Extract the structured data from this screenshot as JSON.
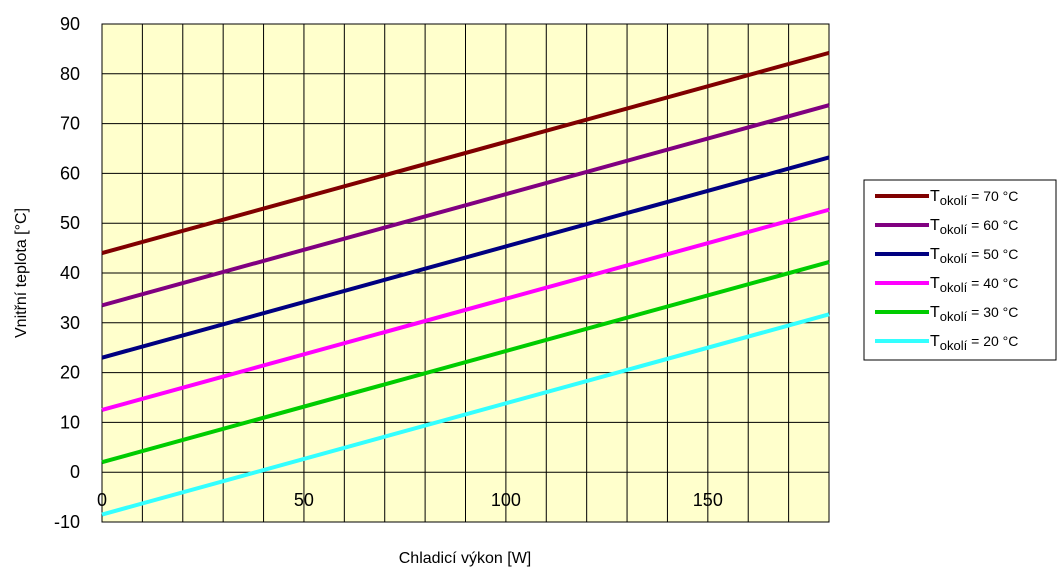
{
  "chart_data": {
    "type": "line",
    "xlabel": "Chladicí výkon [W]",
    "ylabel": "Vnitřní teplota [°C]",
    "xlim": [
      0,
      180
    ],
    "ylim": [
      -10,
      90
    ],
    "x_ticks": [
      0,
      50,
      100,
      150
    ],
    "y_ticks": [
      -10,
      0,
      10,
      20,
      30,
      40,
      50,
      60,
      70,
      80,
      90
    ],
    "x_minor_step": 10,
    "grid": true,
    "plot_background": "#ffffcc",
    "legend_position": "right",
    "series": [
      {
        "label_prefix": "T",
        "label_sub": "okolí",
        "label_suffix": " = 70 °C",
        "color": "#800000",
        "x": [
          0,
          180
        ],
        "y": [
          44,
          84.2
        ]
      },
      {
        "label_prefix": "T",
        "label_sub": "okolí",
        "label_suffix": " = 60 °C",
        "color": "#800080",
        "x": [
          0,
          180
        ],
        "y": [
          33.5,
          73.7
        ]
      },
      {
        "label_prefix": "T",
        "label_sub": "okolí",
        "label_suffix": " = 50 °C",
        "color": "#000080",
        "x": [
          0,
          180
        ],
        "y": [
          23,
          63.2
        ]
      },
      {
        "label_prefix": "T",
        "label_sub": "okolí",
        "label_suffix": " = 40 °C",
        "color": "#ff00ff",
        "x": [
          0,
          180
        ],
        "y": [
          12.5,
          52.7
        ]
      },
      {
        "label_prefix": "T",
        "label_sub": "okolí",
        "label_suffix": " = 30 °C",
        "color": "#00cc00",
        "x": [
          0,
          180
        ],
        "y": [
          2,
          42.2
        ]
      },
      {
        "label_prefix": "T",
        "label_sub": "okolí",
        "label_suffix": " = 20 °C",
        "color": "#33ffff",
        "x": [
          0,
          180
        ],
        "y": [
          -8.5,
          31.7
        ]
      }
    ]
  }
}
